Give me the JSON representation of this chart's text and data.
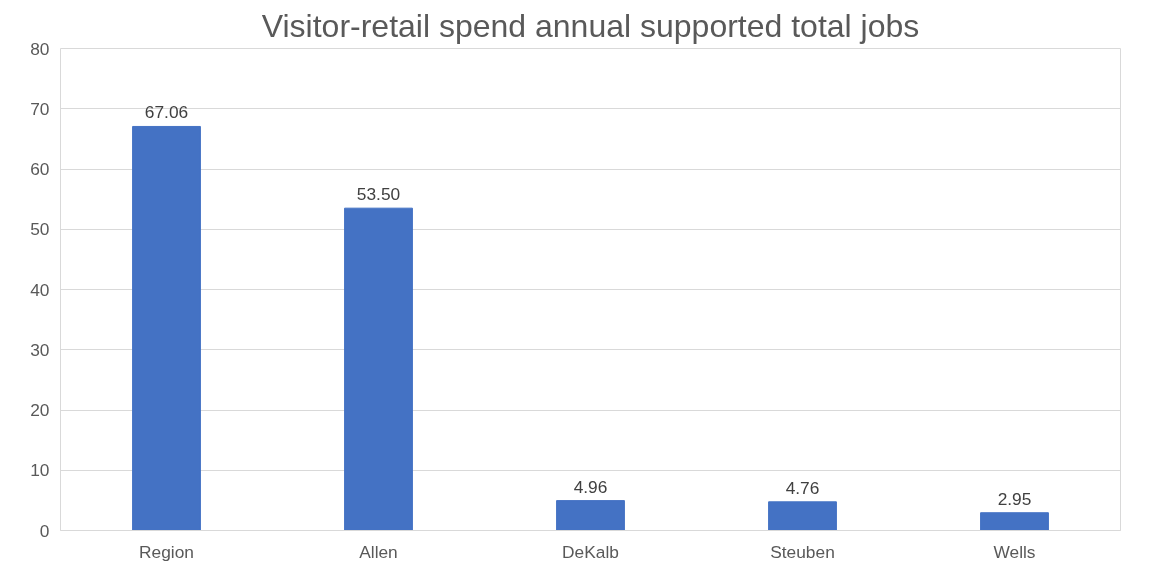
{
  "chart_data": {
    "type": "bar",
    "title": "Visitor-retail spend annual supported total jobs",
    "categories": [
      "Region",
      "Allen",
      "DeKalb",
      "Steuben",
      "Wells"
    ],
    "values": [
      67.06,
      53.5,
      4.96,
      4.76,
      2.95
    ],
    "value_labels": [
      "67.06",
      "53.50",
      "4.96",
      "4.76",
      "2.95"
    ],
    "color": "#4472c4",
    "ylim": [
      0,
      80
    ],
    "yticks": [
      0,
      10,
      20,
      30,
      40,
      50,
      60,
      70,
      80
    ],
    "grid": "y"
  }
}
